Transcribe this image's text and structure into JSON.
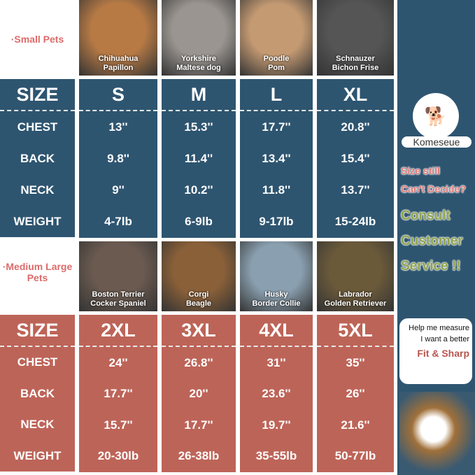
{
  "small": {
    "group_label": "·Small Pets",
    "photos": [
      {
        "line1": "Chihuahua",
        "line2": "Papillon",
        "bg": "#b77a45"
      },
      {
        "line1": "Yorkshire",
        "line2": "Maltese dog",
        "bg": "#9a9590"
      },
      {
        "line1": "Poodle",
        "line2": "Pom",
        "bg": "#c49a72"
      },
      {
        "line1": "Schnauzer",
        "line2": "Bichon Frise",
        "bg": "#555"
      }
    ],
    "header": {
      "label": "SIZE",
      "sizes": [
        "S",
        "M",
        "L",
        "XL"
      ]
    },
    "rows": [
      {
        "label": "CHEST",
        "values": [
          "13''",
          "15.3''",
          "17.7''",
          "20.8''"
        ]
      },
      {
        "label": "BACK",
        "values": [
          "9.8''",
          "11.4''",
          "13.4''",
          "15.4''"
        ]
      },
      {
        "label": "NECK",
        "values": [
          "9''",
          "10.2''",
          "11.8''",
          "13.7''"
        ]
      },
      {
        "label": "WEIGHT",
        "values": [
          "4-7lb",
          "6-9lb",
          "9-17lb",
          "15-24lb"
        ]
      }
    ]
  },
  "medium": {
    "group_label": "·Medium Large Pets",
    "photos": [
      {
        "line1": "Boston Terrier",
        "line2": "Cocker Spaniel",
        "bg": "#6a5a50"
      },
      {
        "line1": "Corgi",
        "line2": "Beagle",
        "bg": "#8a6038"
      },
      {
        "line1": "Husky",
        "line2": "Border Collie",
        "bg": "#8aa0b0"
      },
      {
        "line1": "Labrador",
        "line2": "Golden Retriever",
        "bg": "#6b5a3a"
      }
    ],
    "header": {
      "label": "SIZE",
      "sizes": [
        "2XL",
        "3XL",
        "4XL",
        "5XL"
      ]
    },
    "rows": [
      {
        "label": "CHEST",
        "values": [
          "24''",
          "26.8''",
          "31''",
          "35''"
        ]
      },
      {
        "label": "BACK",
        "values": [
          "17.7''",
          "20''",
          "23.6''",
          "26''"
        ]
      },
      {
        "label": "NECK",
        "values": [
          "15.7''",
          "17.7''",
          "19.7''",
          "21.6''"
        ]
      },
      {
        "label": "WEIGHT",
        "values": [
          "20-30lb",
          "26-38lb",
          "35-55lb",
          "50-77lb"
        ]
      }
    ]
  },
  "sidebar": {
    "brand": "Komeseue",
    "line1": "Size still",
    "line2": "Can't Decide?",
    "consult1": "Consult",
    "consult2": "Customer",
    "consult3": "Service !!",
    "bubble1": "Help me measure",
    "bubble2": "I want a better",
    "bubble3": "Fit & Sharp"
  },
  "colors": {
    "blue": "#2e5570",
    "red": "#bd6458",
    "pink": "#e07a78",
    "green": "#8fa34c"
  }
}
